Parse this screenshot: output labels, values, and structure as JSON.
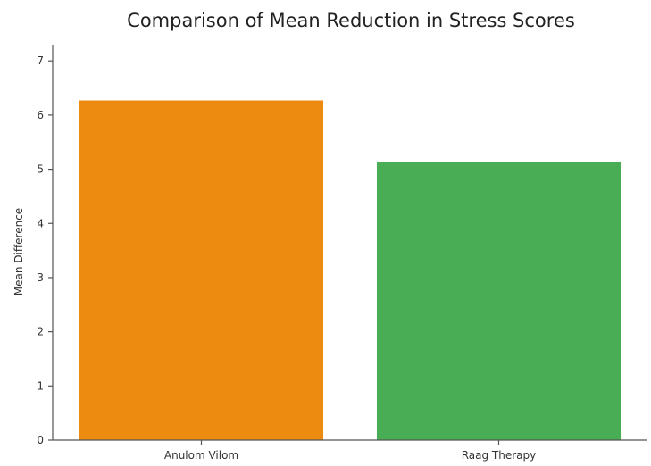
{
  "chart_data": {
    "type": "bar",
    "title": "Comparison of Mean Reduction in Stress Scores",
    "xlabel": "",
    "ylabel": "Mean Difference",
    "categories": [
      "Anulom Vilom",
      "Raag Therapy"
    ],
    "values": [
      6.27,
      5.13
    ],
    "bar_colors": [
      "#ec8b10",
      "#48ad55"
    ],
    "ylim": [
      0,
      7.3
    ],
    "yticks": [
      0,
      1,
      2,
      3,
      4,
      5,
      6,
      7
    ],
    "grid": false,
    "legend": "none"
  }
}
